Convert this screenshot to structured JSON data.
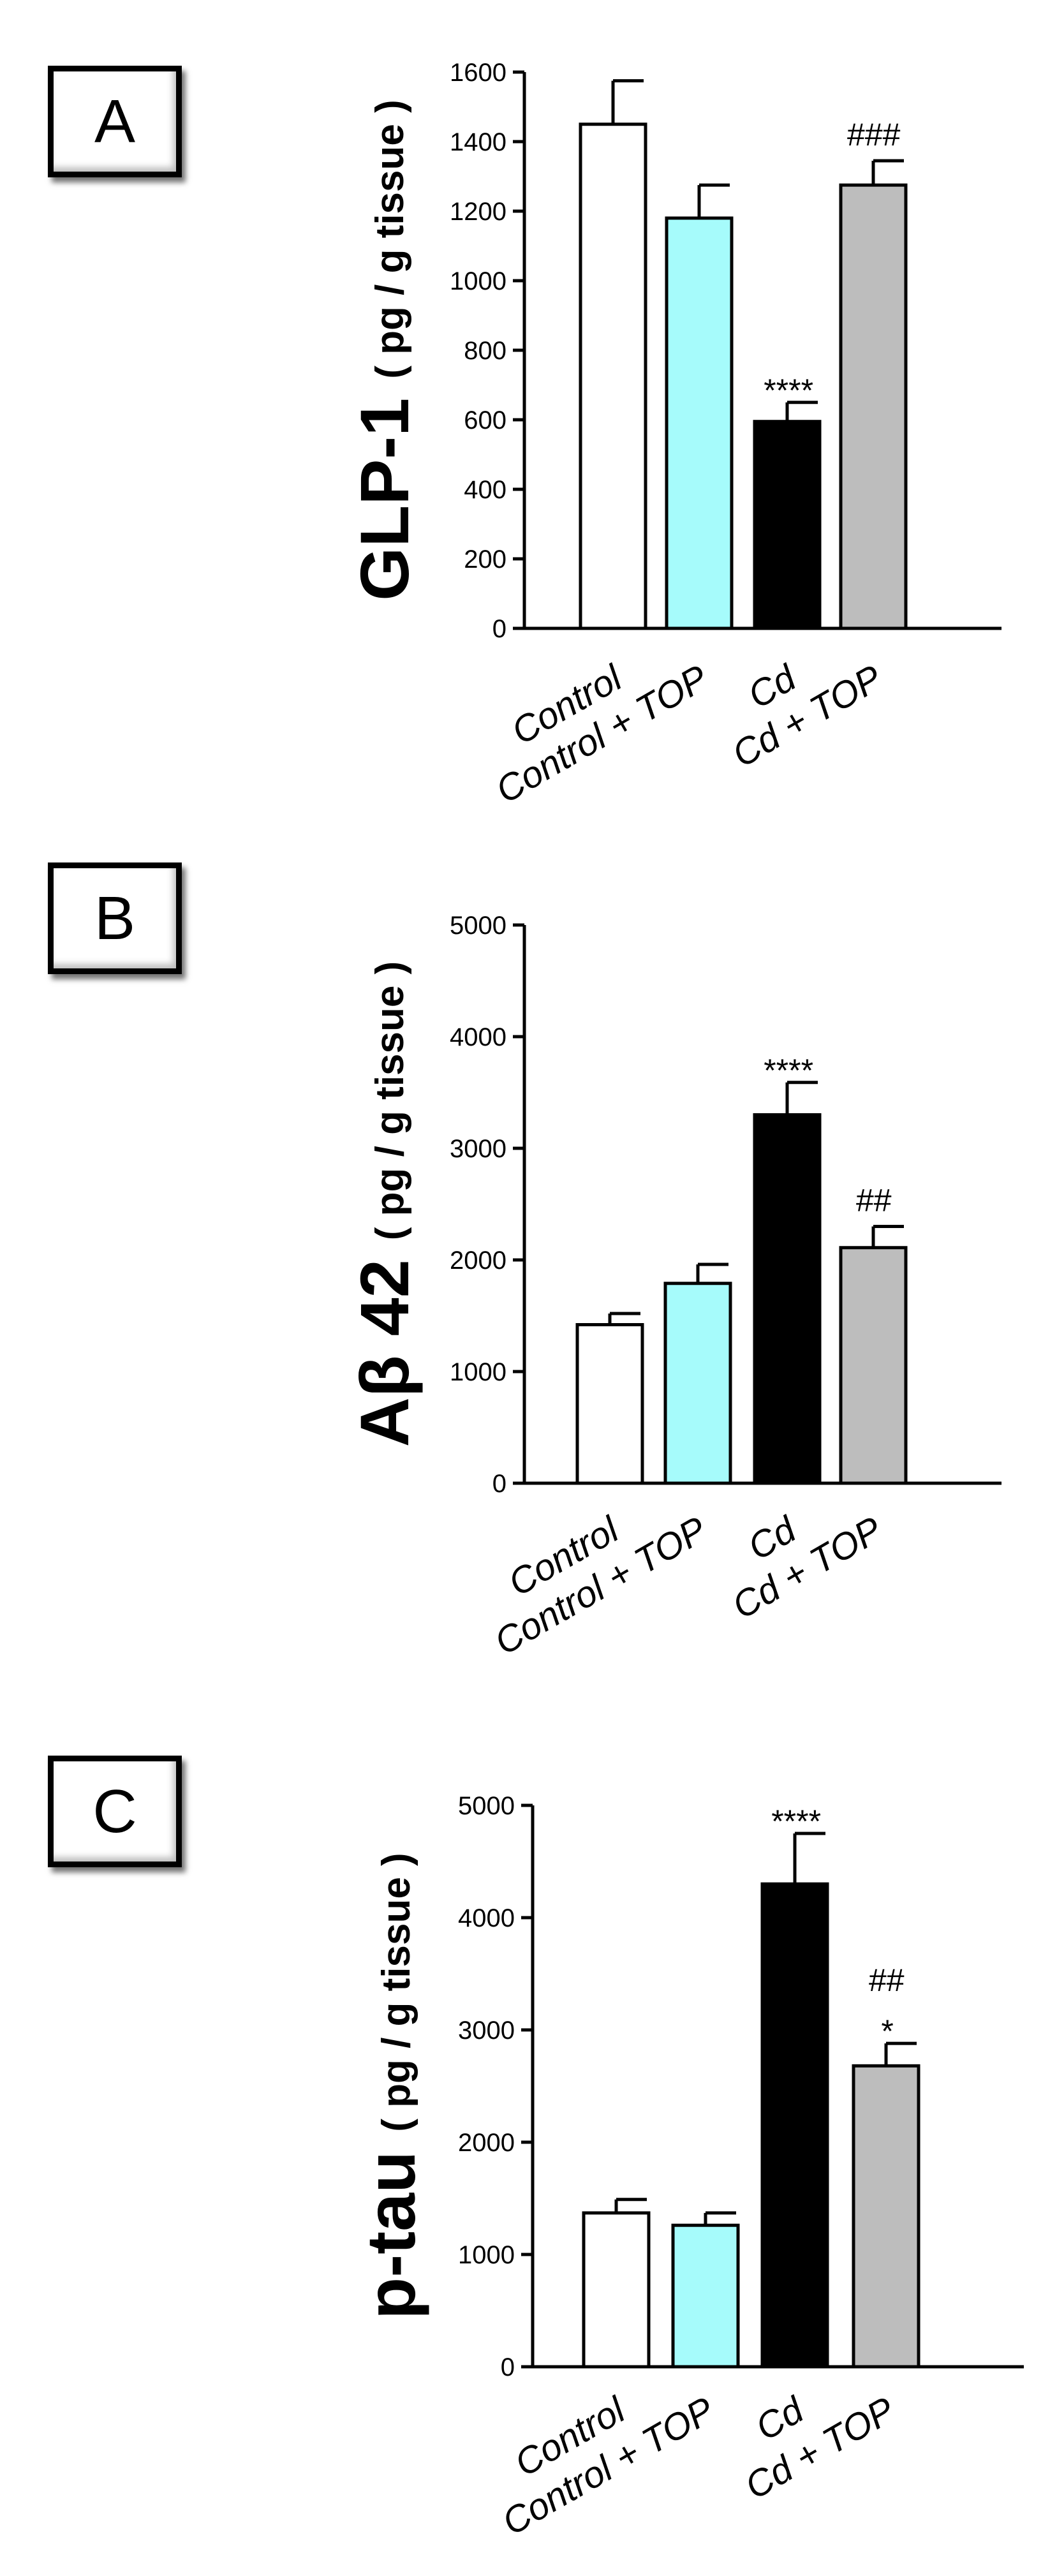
{
  "chart_data": [
    {
      "type": "bar",
      "panel_label": "A",
      "categories": [
        "Control",
        "Control + TOP",
        "Cd",
        "Cd + TOP"
      ],
      "values": [
        1450,
        1180,
        595,
        1275
      ],
      "errors": [
        125,
        95,
        55,
        70
      ],
      "annotations": [
        "",
        "",
        "****",
        "###"
      ],
      "ylabel_main": "GLP-1",
      "ylabel_unit": "( pg / g tissue )",
      "ylim": [
        0,
        1600
      ],
      "yticks": [
        0,
        200,
        400,
        600,
        800,
        1000,
        1200,
        1400,
        1600
      ],
      "colors": [
        "#ffffff",
        "#a6fbfb",
        "#000000",
        "#bdbdbd"
      ]
    },
    {
      "type": "bar",
      "panel_label": "B",
      "categories": [
        "Control",
        "Control + TOP",
        "Cd",
        "Cd + TOP"
      ],
      "values": [
        1420,
        1790,
        3300,
        2110
      ],
      "errors": [
        100,
        170,
        290,
        190
      ],
      "annotations": [
        "",
        "",
        "****",
        "##"
      ],
      "ylabel_main": "Aβ 42",
      "ylabel_unit": "( pg / g tissue )",
      "ylim": [
        0,
        5000
      ],
      "yticks": [
        0,
        1000,
        2000,
        3000,
        4000,
        5000
      ],
      "colors": [
        "#ffffff",
        "#a6fbfb",
        "#000000",
        "#bdbdbd"
      ]
    },
    {
      "type": "bar",
      "panel_label": "C",
      "categories": [
        "Control",
        "Control + TOP",
        "Cd",
        "Cd + TOP"
      ],
      "values": [
        1370,
        1260,
        4300,
        2680
      ],
      "errors": [
        120,
        110,
        450,
        200
      ],
      "annotations": [
        "",
        "",
        "****",
        "##\n*"
      ],
      "ylabel_main": "p-tau",
      "ylabel_unit": "( pg / g tissue )",
      "ylim": [
        0,
        5000
      ],
      "yticks": [
        0,
        1000,
        2000,
        3000,
        4000,
        5000
      ],
      "colors": [
        "#ffffff",
        "#a6fbfb",
        "#000000",
        "#bdbdbd"
      ]
    }
  ]
}
